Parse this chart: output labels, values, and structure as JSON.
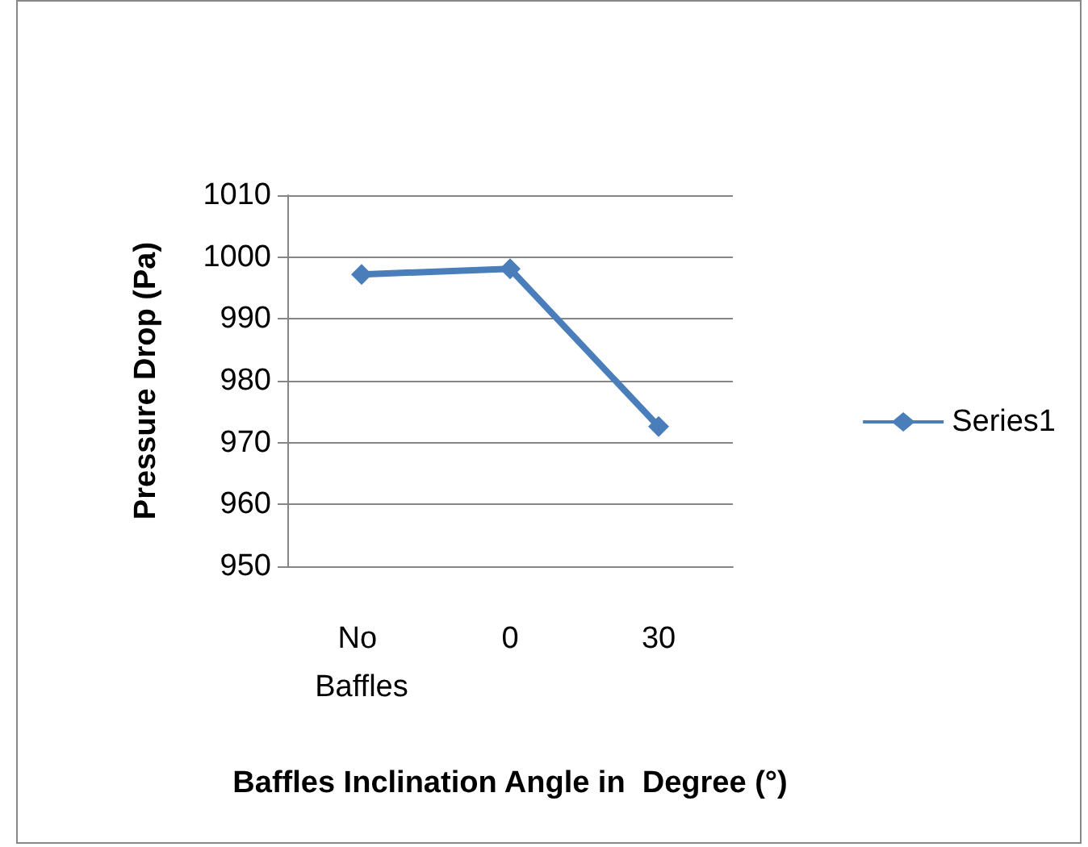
{
  "chart_data": {
    "type": "line",
    "xlabel": "Baffles Inclination Angle in  Degree (°)",
    "ylabel": "Pressure Drop (Pa)",
    "categories": [
      "No Baffles",
      "0",
      "30"
    ],
    "series": [
      {
        "name": "Series1",
        "color": "#4a7ebb",
        "values": [
          997.2,
          998.1,
          972.6
        ]
      }
    ],
    "ylim": [
      950,
      1010
    ],
    "yticks": [
      950,
      960,
      970,
      980,
      990,
      1000,
      1010
    ],
    "grid": "y",
    "legend": "right",
    "marker": "diamond",
    "line_style": "solid"
  }
}
